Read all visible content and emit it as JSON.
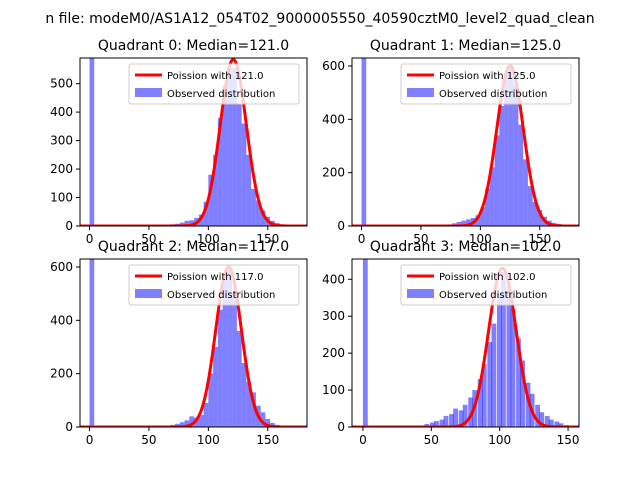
{
  "figure": {
    "suptitle": "n file: modeM0/AS1A12_054T02_9000005550_40590cztM0_level2_quad_clean"
  },
  "chart_data": [
    {
      "type": "bar",
      "title": "Quadrant 0: Median=121.0",
      "xlim": [
        -8,
        183
      ],
      "ylim": [
        0,
        590
      ],
      "xticks": [
        0,
        50,
        100,
        150
      ],
      "yticks": [
        0,
        100,
        200,
        300,
        400,
        500
      ],
      "legend_position": "top-right",
      "bin_width": 4,
      "series": [
        {
          "name": "Poission with 121.0",
          "kind": "line",
          "color": "#ff0000",
          "mean": 121.0,
          "peak": 585
        },
        {
          "name": "Observed distribution",
          "kind": "histogram",
          "color": "#0000ff",
          "x": [
            0,
            24,
            64,
            68,
            72,
            76,
            80,
            84,
            88,
            92,
            96,
            100,
            104,
            108,
            112,
            116,
            120,
            124,
            128,
            132,
            136,
            140,
            144,
            148,
            152,
            156,
            160,
            164
          ],
          "values": [
            590,
            3,
            4,
            6,
            8,
            12,
            18,
            20,
            28,
            40,
            85,
            180,
            250,
            380,
            495,
            555,
            555,
            430,
            360,
            250,
            130,
            90,
            55,
            32,
            18,
            10,
            6,
            3
          ]
        }
      ]
    },
    {
      "type": "bar",
      "title": "Quadrant 1: Median=125.0",
      "xlim": [
        -8,
        183
      ],
      "ylim": [
        0,
        630
      ],
      "xticks": [
        0,
        50,
        100,
        150
      ],
      "yticks": [
        0,
        200,
        400,
        600
      ],
      "legend_position": "top-right",
      "bin_width": 4,
      "series": [
        {
          "name": "Poission with 125.0",
          "kind": "line",
          "color": "#ff0000",
          "mean": 125.0,
          "peak": 600
        },
        {
          "name": "Observed distribution",
          "kind": "histogram",
          "color": "#0000ff",
          "x": [
            0,
            24,
            72,
            76,
            80,
            84,
            88,
            92,
            96,
            100,
            104,
            108,
            112,
            116,
            120,
            124,
            128,
            132,
            136,
            140,
            144,
            148,
            152,
            156,
            160,
            164,
            168
          ],
          "values": [
            630,
            3,
            6,
            10,
            15,
            20,
            25,
            30,
            40,
            70,
            140,
            220,
            340,
            450,
            570,
            600,
            530,
            380,
            250,
            150,
            90,
            60,
            35,
            20,
            12,
            8,
            4
          ]
        }
      ]
    },
    {
      "type": "bar",
      "title": "Quadrant 2: Median=117.0",
      "xlim": [
        -8,
        183
      ],
      "ylim": [
        0,
        630
      ],
      "xticks": [
        0,
        50,
        100,
        150
      ],
      "yticks": [
        0,
        200,
        400,
        600
      ],
      "legend_position": "top-right",
      "bin_width": 4,
      "series": [
        {
          "name": "Poission with 117.0",
          "kind": "line",
          "color": "#ff0000",
          "mean": 117.0,
          "peak": 600
        },
        {
          "name": "Observed distribution",
          "kind": "histogram",
          "color": "#0000ff",
          "x": [
            0,
            24,
            64,
            68,
            72,
            76,
            80,
            84,
            88,
            92,
            96,
            100,
            104,
            108,
            112,
            116,
            120,
            124,
            128,
            132,
            136,
            140,
            144,
            148,
            152,
            156,
            160
          ],
          "values": [
            630,
            3,
            5,
            8,
            12,
            18,
            25,
            40,
            35,
            45,
            90,
            200,
            300,
            440,
            560,
            590,
            500,
            360,
            240,
            170,
            130,
            80,
            55,
            30,
            15,
            8,
            4
          ]
        }
      ]
    },
    {
      "type": "bar",
      "title": "Quadrant 3: Median=102.0",
      "xlim": [
        -8,
        158
      ],
      "ylim": [
        0,
        455
      ],
      "xticks": [
        0,
        50,
        100,
        150
      ],
      "yticks": [
        0,
        100,
        200,
        300,
        400
      ],
      "legend_position": "top-right",
      "bin_width": 3.5,
      "series": [
        {
          "name": "Poission with 102.0",
          "kind": "line",
          "color": "#ff0000",
          "mean": 102.0,
          "peak": 430
        },
        {
          "name": "Observed distribution",
          "kind": "histogram",
          "color": "#0000ff",
          "x": [
            0,
            20,
            45,
            49,
            52,
            56,
            59,
            63,
            66,
            70,
            73,
            77,
            80,
            84,
            87,
            91,
            94,
            98,
            101,
            105,
            108,
            112,
            115,
            119,
            122,
            126,
            129,
            133,
            136,
            140,
            143,
            147
          ],
          "values": [
            455,
            3,
            8,
            12,
            16,
            20,
            30,
            35,
            50,
            45,
            60,
            80,
            100,
            130,
            170,
            230,
            280,
            360,
            420,
            380,
            320,
            240,
            180,
            120,
            90,
            60,
            40,
            30,
            20,
            15,
            10,
            5
          ]
        }
      ]
    }
  ]
}
